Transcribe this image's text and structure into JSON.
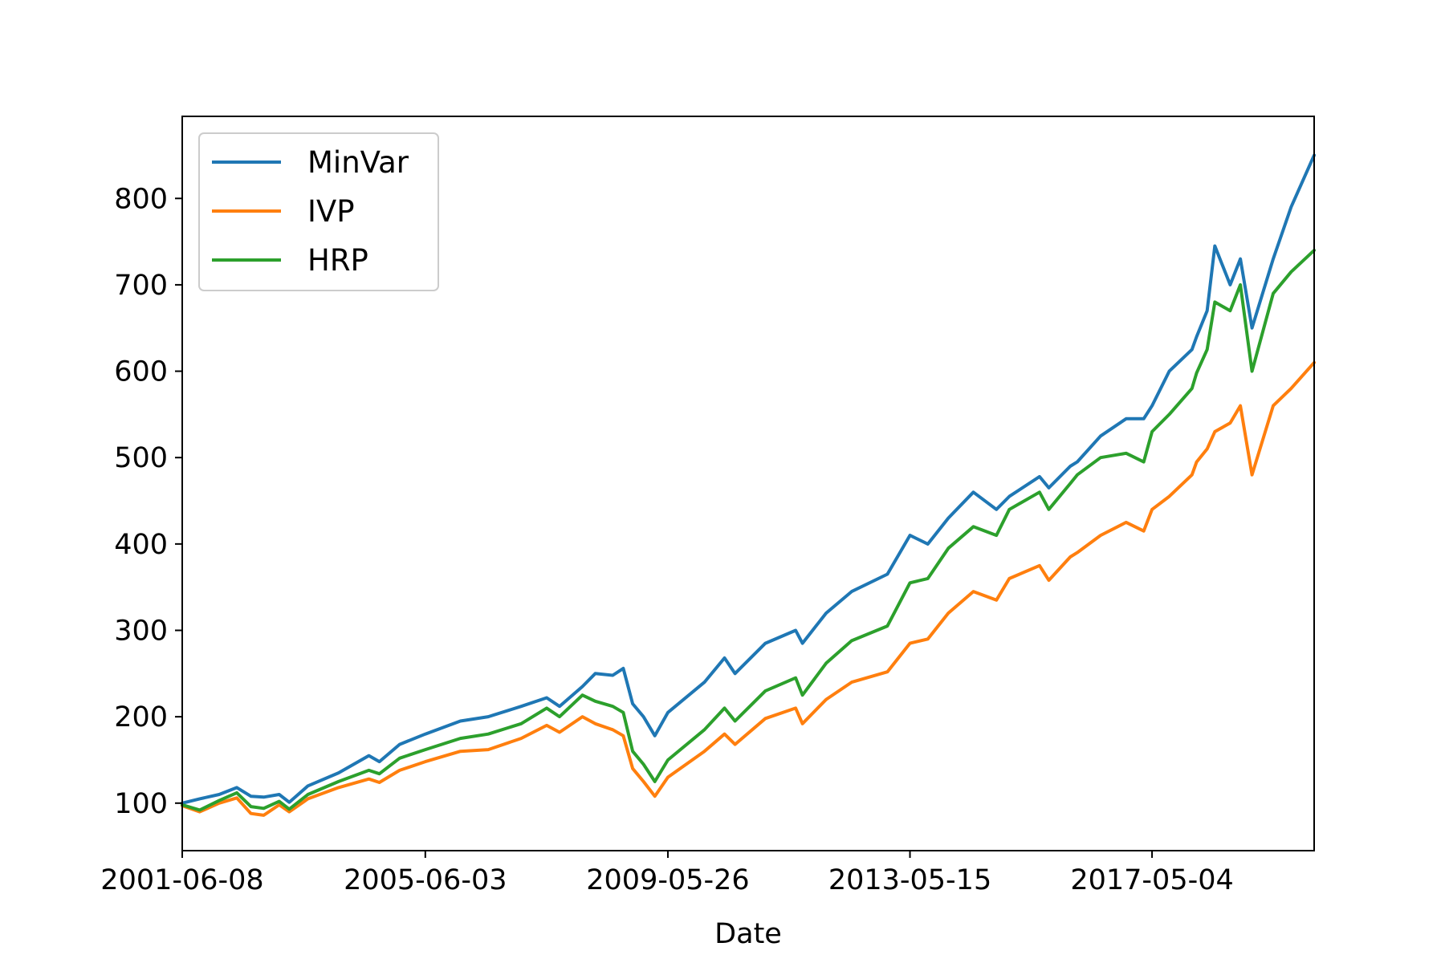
{
  "chart_data": {
    "type": "line",
    "title": "",
    "xlabel": "Date",
    "ylabel": "",
    "x_ticks": [
      "2001-06-08",
      "2005-06-03",
      "2009-05-26",
      "2013-05-15",
      "2017-05-04"
    ],
    "y_ticks": [
      100,
      200,
      300,
      400,
      500,
      600,
      700,
      800
    ],
    "xlim": [
      "2001-06-08",
      "2019-12-31"
    ],
    "ylim": [
      45,
      895
    ],
    "grid": false,
    "legend_position": "top-left",
    "series": [
      {
        "name": "MinVar",
        "color": "#1f77b4",
        "points": [
          [
            "2001-06-08",
            100
          ],
          [
            "2001-09-21",
            105
          ],
          [
            "2002-01-15",
            110
          ],
          [
            "2002-05-01",
            118
          ],
          [
            "2002-07-24",
            108
          ],
          [
            "2002-10-09",
            107
          ],
          [
            "2003-01-10",
            110
          ],
          [
            "2003-03-11",
            101
          ],
          [
            "2003-07-01",
            120
          ],
          [
            "2003-12-31",
            135
          ],
          [
            "2004-06-30",
            155
          ],
          [
            "2004-09-01",
            148
          ],
          [
            "2004-12-31",
            168
          ],
          [
            "2005-06-03",
            180
          ],
          [
            "2005-12-30",
            195
          ],
          [
            "2006-06-15",
            200
          ],
          [
            "2006-12-29",
            212
          ],
          [
            "2007-05-31",
            222
          ],
          [
            "2007-08-16",
            212
          ],
          [
            "2007-12-31",
            235
          ],
          [
            "2008-03-17",
            250
          ],
          [
            "2008-06-30",
            248
          ],
          [
            "2008-09-01",
            256
          ],
          [
            "2008-10-27",
            215
          ],
          [
            "2008-12-31",
            200
          ],
          [
            "2009-03-09",
            178
          ],
          [
            "2009-05-26",
            205
          ],
          [
            "2009-12-31",
            240
          ],
          [
            "2010-04-30",
            268
          ],
          [
            "2010-07-02",
            250
          ],
          [
            "2010-12-31",
            285
          ],
          [
            "2011-06-30",
            300
          ],
          [
            "2011-08-10",
            285
          ],
          [
            "2011-12-30",
            320
          ],
          [
            "2012-05-31",
            345
          ],
          [
            "2012-12-31",
            365
          ],
          [
            "2013-05-15",
            410
          ],
          [
            "2013-08-30",
            400
          ],
          [
            "2013-12-31",
            430
          ],
          [
            "2014-05-30",
            460
          ],
          [
            "2014-10-15",
            440
          ],
          [
            "2014-12-31",
            455
          ],
          [
            "2015-06-30",
            478
          ],
          [
            "2015-08-25",
            465
          ],
          [
            "2015-12-31",
            490
          ],
          [
            "2016-02-11",
            495
          ],
          [
            "2016-06-30",
            525
          ],
          [
            "2016-11-30",
            545
          ],
          [
            "2017-03-15",
            545
          ],
          [
            "2017-05-04",
            560
          ],
          [
            "2017-08-15",
            600
          ],
          [
            "2017-12-29",
            625
          ],
          [
            "2018-01-26",
            640
          ],
          [
            "2018-03-30",
            670
          ],
          [
            "2018-05-15",
            745
          ],
          [
            "2018-08-15",
            700
          ],
          [
            "2018-10-15",
            730
          ],
          [
            "2018-12-24",
            650
          ],
          [
            "2019-04-30",
            730
          ],
          [
            "2019-08-15",
            790
          ],
          [
            "2019-12-31",
            850
          ]
        ]
      },
      {
        "name": "IVP",
        "color": "#ff7f0e",
        "points": [
          [
            "2001-06-08",
            97
          ],
          [
            "2001-09-21",
            90
          ],
          [
            "2002-01-15",
            100
          ],
          [
            "2002-05-01",
            106
          ],
          [
            "2002-07-24",
            88
          ],
          [
            "2002-10-09",
            86
          ],
          [
            "2003-01-10",
            98
          ],
          [
            "2003-03-11",
            90
          ],
          [
            "2003-07-01",
            105
          ],
          [
            "2003-12-31",
            118
          ],
          [
            "2004-06-30",
            128
          ],
          [
            "2004-09-01",
            124
          ],
          [
            "2004-12-31",
            138
          ],
          [
            "2005-06-03",
            148
          ],
          [
            "2005-12-30",
            160
          ],
          [
            "2006-06-15",
            162
          ],
          [
            "2006-12-29",
            175
          ],
          [
            "2007-05-31",
            190
          ],
          [
            "2007-08-16",
            182
          ],
          [
            "2007-12-31",
            200
          ],
          [
            "2008-03-17",
            192
          ],
          [
            "2008-06-30",
            185
          ],
          [
            "2008-09-01",
            178
          ],
          [
            "2008-10-27",
            140
          ],
          [
            "2008-12-31",
            125
          ],
          [
            "2009-03-09",
            108
          ],
          [
            "2009-05-26",
            130
          ],
          [
            "2009-12-31",
            160
          ],
          [
            "2010-04-30",
            180
          ],
          [
            "2010-07-02",
            168
          ],
          [
            "2010-12-31",
            198
          ],
          [
            "2011-06-30",
            210
          ],
          [
            "2011-08-10",
            192
          ],
          [
            "2011-12-30",
            220
          ],
          [
            "2012-05-31",
            240
          ],
          [
            "2012-12-31",
            252
          ],
          [
            "2013-05-15",
            285
          ],
          [
            "2013-08-30",
            290
          ],
          [
            "2013-12-31",
            320
          ],
          [
            "2014-05-30",
            345
          ],
          [
            "2014-10-15",
            335
          ],
          [
            "2014-12-31",
            360
          ],
          [
            "2015-06-30",
            375
          ],
          [
            "2015-08-25",
            358
          ],
          [
            "2015-12-31",
            385
          ],
          [
            "2016-02-11",
            390
          ],
          [
            "2016-06-30",
            410
          ],
          [
            "2016-11-30",
            425
          ],
          [
            "2017-03-15",
            415
          ],
          [
            "2017-05-04",
            440
          ],
          [
            "2017-08-15",
            455
          ],
          [
            "2017-12-29",
            480
          ],
          [
            "2018-01-26",
            495
          ],
          [
            "2018-03-30",
            510
          ],
          [
            "2018-05-15",
            530
          ],
          [
            "2018-08-15",
            540
          ],
          [
            "2018-10-15",
            560
          ],
          [
            "2018-12-24",
            480
          ],
          [
            "2019-04-30",
            560
          ],
          [
            "2019-08-15",
            580
          ],
          [
            "2019-12-31",
            610
          ]
        ]
      },
      {
        "name": "HRP",
        "color": "#2ca02c",
        "points": [
          [
            "2001-06-08",
            98
          ],
          [
            "2001-09-21",
            92
          ],
          [
            "2002-01-15",
            103
          ],
          [
            "2002-05-01",
            112
          ],
          [
            "2002-07-24",
            96
          ],
          [
            "2002-10-09",
            94
          ],
          [
            "2003-01-10",
            102
          ],
          [
            "2003-03-11",
            93
          ],
          [
            "2003-07-01",
            110
          ],
          [
            "2003-12-31",
            125
          ],
          [
            "2004-06-30",
            138
          ],
          [
            "2004-09-01",
            134
          ],
          [
            "2004-12-31",
            152
          ],
          [
            "2005-06-03",
            162
          ],
          [
            "2005-12-30",
            175
          ],
          [
            "2006-06-15",
            180
          ],
          [
            "2006-12-29",
            192
          ],
          [
            "2007-05-31",
            210
          ],
          [
            "2007-08-16",
            200
          ],
          [
            "2007-12-31",
            225
          ],
          [
            "2008-03-17",
            218
          ],
          [
            "2008-06-30",
            212
          ],
          [
            "2008-09-01",
            205
          ],
          [
            "2008-10-27",
            160
          ],
          [
            "2008-12-31",
            145
          ],
          [
            "2009-03-09",
            125
          ],
          [
            "2009-05-26",
            150
          ],
          [
            "2009-12-31",
            185
          ],
          [
            "2010-04-30",
            210
          ],
          [
            "2010-07-02",
            195
          ],
          [
            "2010-12-31",
            230
          ],
          [
            "2011-06-30",
            245
          ],
          [
            "2011-08-10",
            225
          ],
          [
            "2011-12-30",
            262
          ],
          [
            "2012-05-31",
            288
          ],
          [
            "2012-12-31",
            305
          ],
          [
            "2013-05-15",
            355
          ],
          [
            "2013-08-30",
            360
          ],
          [
            "2013-12-31",
            395
          ],
          [
            "2014-05-30",
            420
          ],
          [
            "2014-10-15",
            410
          ],
          [
            "2014-12-31",
            440
          ],
          [
            "2015-06-30",
            460
          ],
          [
            "2015-08-25",
            440
          ],
          [
            "2015-12-31",
            470
          ],
          [
            "2016-02-11",
            480
          ],
          [
            "2016-06-30",
            500
          ],
          [
            "2016-11-30",
            505
          ],
          [
            "2017-03-15",
            495
          ],
          [
            "2017-05-04",
            530
          ],
          [
            "2017-08-15",
            550
          ],
          [
            "2017-12-29",
            580
          ],
          [
            "2018-01-26",
            598
          ],
          [
            "2018-03-30",
            625
          ],
          [
            "2018-05-15",
            680
          ],
          [
            "2018-08-15",
            670
          ],
          [
            "2018-10-15",
            700
          ],
          [
            "2018-12-24",
            600
          ],
          [
            "2019-04-30",
            690
          ],
          [
            "2019-08-15",
            715
          ],
          [
            "2019-12-31",
            740
          ]
        ]
      }
    ]
  }
}
